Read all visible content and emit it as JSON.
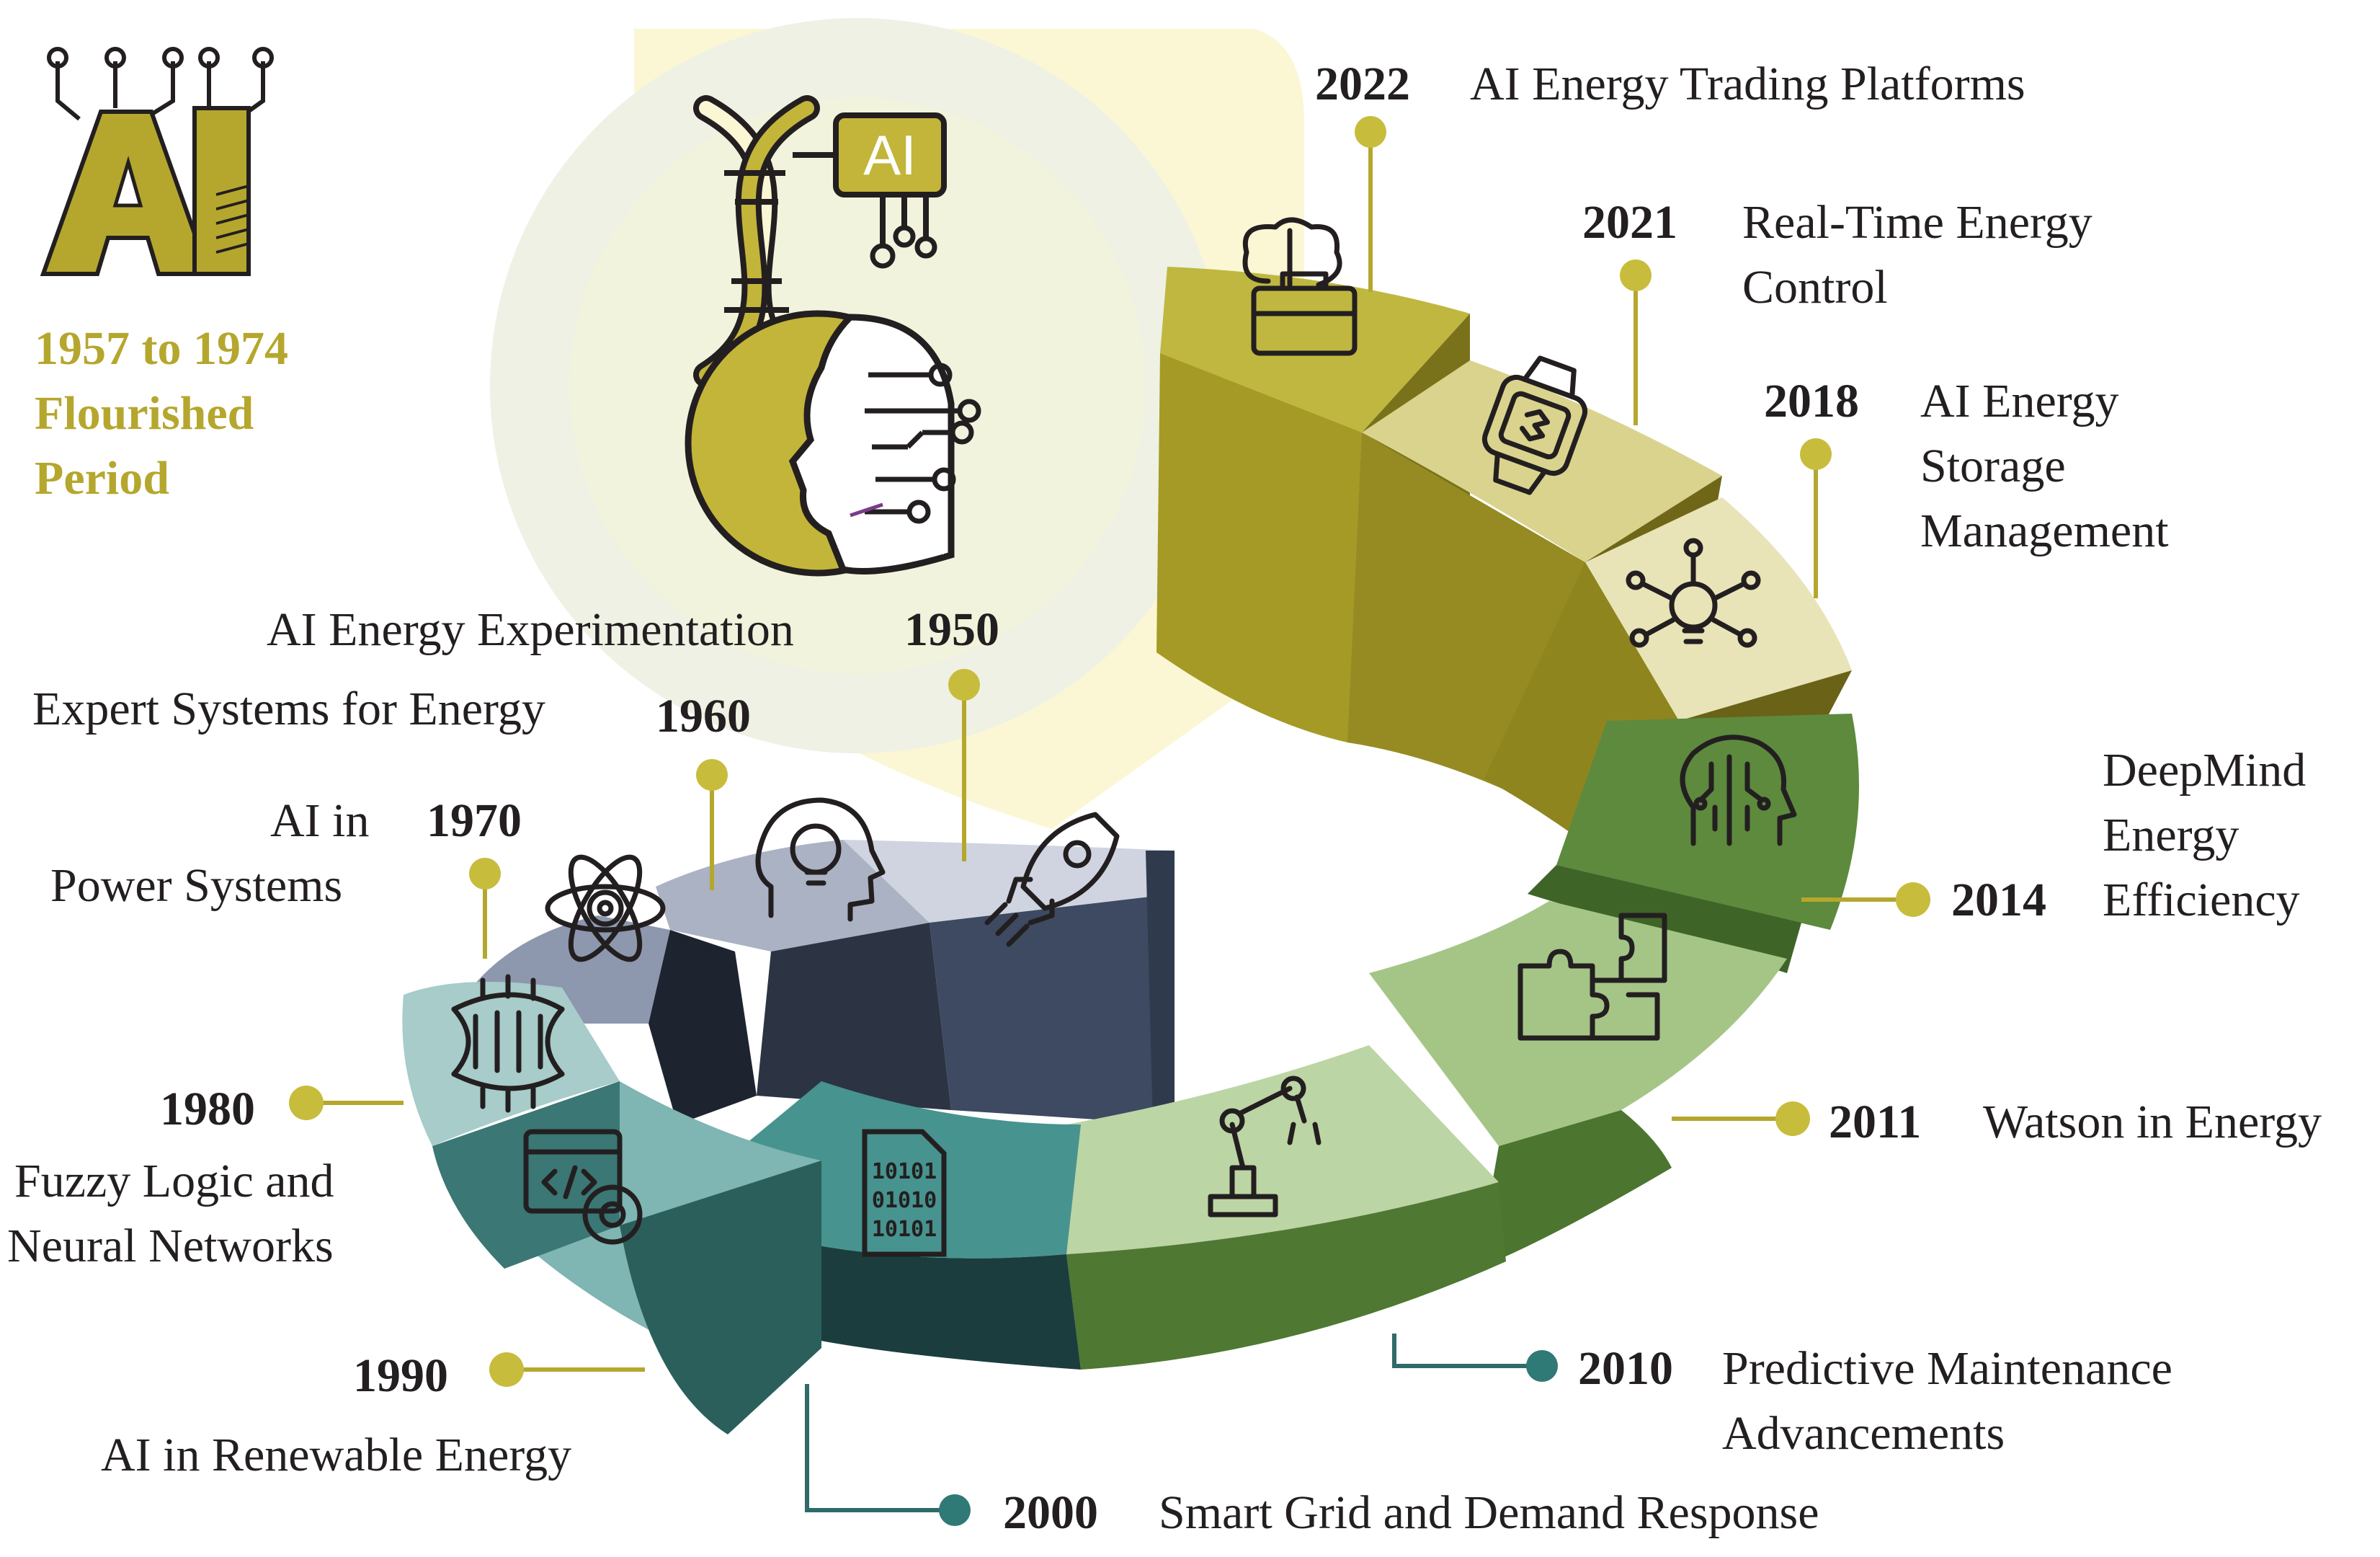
{
  "logo": {
    "text": "AI"
  },
  "period": {
    "line1": "1957 to 1974",
    "line2": "Flourished",
    "line3": "Period"
  },
  "milestones": [
    {
      "year": "1950",
      "label_lines": [
        "AI Energy Experimentation"
      ],
      "icon": "rocket-icon"
    },
    {
      "year": "1960",
      "label_lines": [
        "Expert Systems for Energy"
      ],
      "icon": "lightbulb-head-icon"
    },
    {
      "year": "1970",
      "label_lines": [
        "AI in",
        "Power Systems"
      ],
      "icon": "atom-gear-icon"
    },
    {
      "year": "1980",
      "label_lines": [
        "Fuzzy Logic and",
        "Neural Networks"
      ],
      "icon": "dna-circuit-icon"
    },
    {
      "year": "1990",
      "label_lines": [
        "AI in Renewable Energy"
      ],
      "icon": "code-gear-icon"
    },
    {
      "year": "2000",
      "label_lines": [
        "Smart Grid and Demand Response"
      ],
      "icon": "binary-file-icon"
    },
    {
      "year": "2010",
      "label_lines": [
        "Predictive Maintenance",
        "Advancements"
      ],
      "icon": "robot-arm-icon"
    },
    {
      "year": "2011",
      "label_lines": [
        "Watson in Energy"
      ],
      "icon": "puzzle-icon"
    },
    {
      "year": "2014",
      "label_lines": [
        "DeepMind",
        "Energy",
        "Efficiency"
      ],
      "icon": "brain-head-icon"
    },
    {
      "year": "2018",
      "label_lines": [
        "AI Energy",
        "Storage",
        "Management"
      ],
      "icon": "bulb-network-icon"
    },
    {
      "year": "2021",
      "label_lines": [
        "Real-Time Energy",
        "Control"
      ],
      "icon": "smartwatch-icon"
    },
    {
      "year": "2022",
      "label_lines": [
        "AI Energy Trading Platforms"
      ],
      "icon": "brain-briefcase-icon"
    }
  ],
  "bubble": {
    "chip_text": "AI",
    "icons": [
      "dna-helix-icon",
      "ai-chip-icon",
      "ai-face-icon"
    ]
  },
  "colors": {
    "gold": "#b5a72e",
    "olive_dark": "#9c9121",
    "olive_mid": "#c0b740",
    "olive_light": "#e3dfad",
    "green_dark": "#5d8a3d",
    "green_light": "#a5c587",
    "teal_dark": "#2f6b69",
    "teal": "#47938f",
    "teal_light": "#a7ccca",
    "slate_dark": "#364458",
    "slate": "#8d97ad",
    "slate_light": "#cfd4e0",
    "text": "#231f20"
  }
}
